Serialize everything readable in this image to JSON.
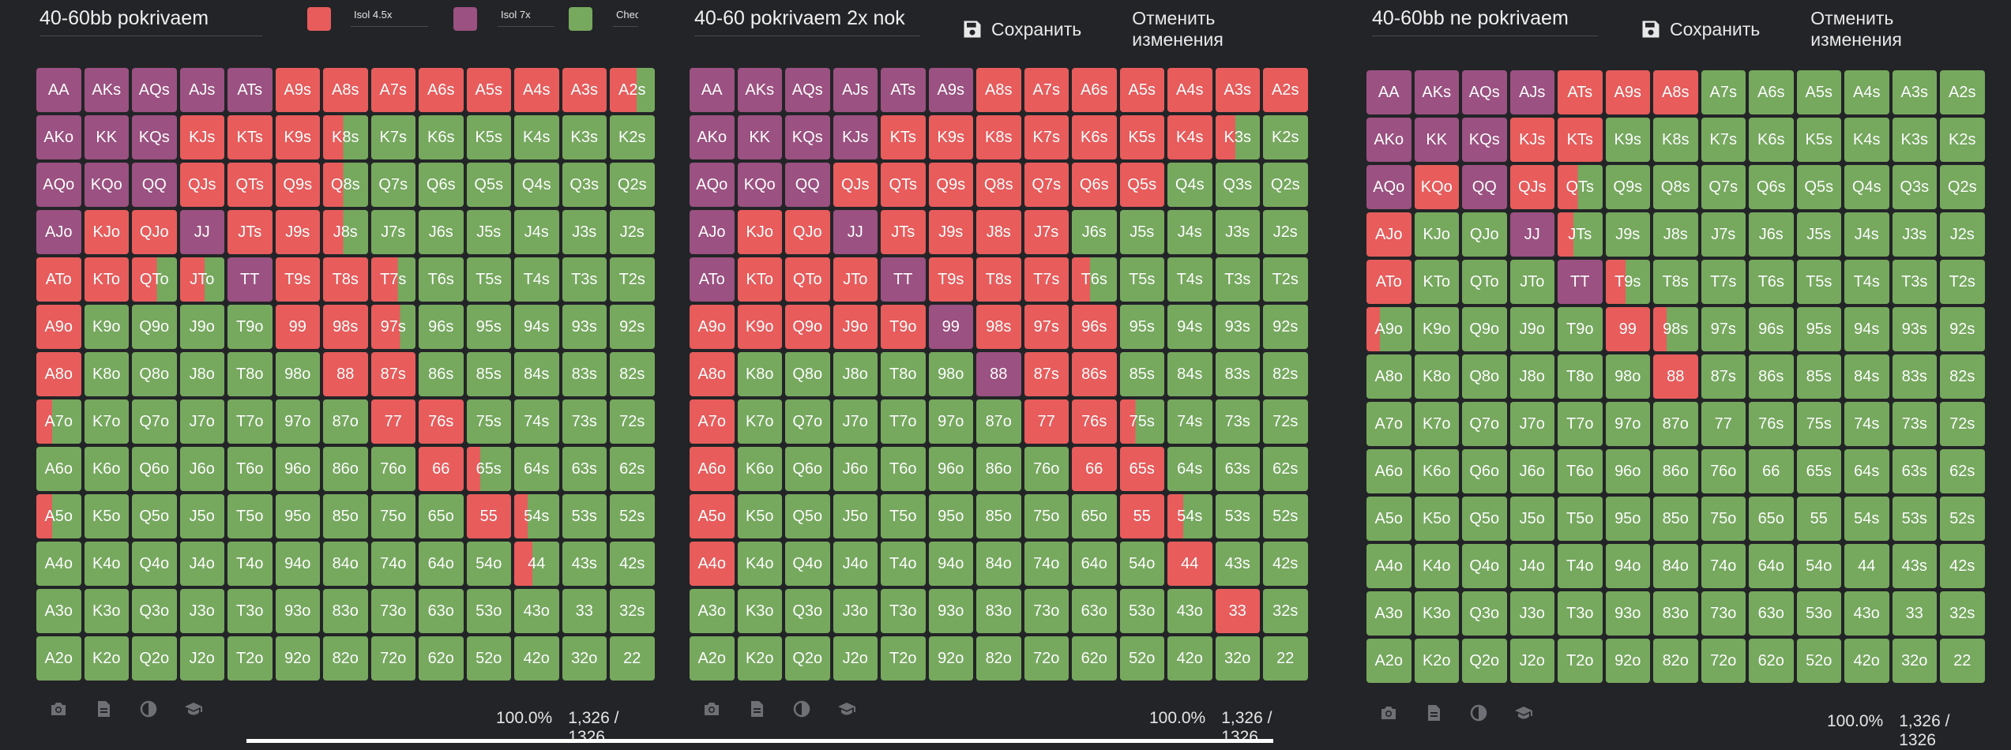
{
  "colors": {
    "isol45": "#e85c5c",
    "isol7": "#9b5181",
    "check": "#76a95e",
    "background": "#232427"
  },
  "legend": {
    "isol45_label": "Isol 4.5x",
    "isol7_label": "Isol 7x",
    "check_label": "Check"
  },
  "toolbar": {
    "save_label": "Сохранить",
    "cancel_label": "Отменить изменения"
  },
  "grid_hands": [
    [
      "AA",
      "AKs",
      "AQs",
      "AJs",
      "ATs",
      "A9s",
      "A8s",
      "A7s",
      "A6s",
      "A5s",
      "A4s",
      "A3s",
      "A2s"
    ],
    [
      "AKo",
      "KK",
      "KQs",
      "KJs",
      "KTs",
      "K9s",
      "K8s",
      "K7s",
      "K6s",
      "K5s",
      "K4s",
      "K3s",
      "K2s"
    ],
    [
      "AQo",
      "KQo",
      "QQ",
      "QJs",
      "QTs",
      "Q9s",
      "Q8s",
      "Q7s",
      "Q6s",
      "Q5s",
      "Q4s",
      "Q3s",
      "Q2s"
    ],
    [
      "AJo",
      "KJo",
      "QJo",
      "JJ",
      "JTs",
      "J9s",
      "J8s",
      "J7s",
      "J6s",
      "J5s",
      "J4s",
      "J3s",
      "J2s"
    ],
    [
      "ATo",
      "KTo",
      "QTo",
      "JTo",
      "TT",
      "T9s",
      "T8s",
      "T7s",
      "T6s",
      "T5s",
      "T4s",
      "T3s",
      "T2s"
    ],
    [
      "A9o",
      "K9o",
      "Q9o",
      "J9o",
      "T9o",
      "99",
      "98s",
      "97s",
      "96s",
      "95s",
      "94s",
      "93s",
      "92s"
    ],
    [
      "A8o",
      "K8o",
      "Q8o",
      "J8o",
      "T8o",
      "98o",
      "88",
      "87s",
      "86s",
      "85s",
      "84s",
      "83s",
      "82s"
    ],
    [
      "A7o",
      "K7o",
      "Q7o",
      "J7o",
      "T7o",
      "97o",
      "87o",
      "77",
      "76s",
      "75s",
      "74s",
      "73s",
      "72s"
    ],
    [
      "A6o",
      "K6o",
      "Q6o",
      "J6o",
      "T6o",
      "96o",
      "86o",
      "76o",
      "66",
      "65s",
      "64s",
      "63s",
      "62s"
    ],
    [
      "A5o",
      "K5o",
      "Q5o",
      "J5o",
      "T5o",
      "95o",
      "85o",
      "75o",
      "65o",
      "55",
      "54s",
      "53s",
      "52s"
    ],
    [
      "A4o",
      "K4o",
      "Q4o",
      "J4o",
      "T4o",
      "94o",
      "84o",
      "74o",
      "64o",
      "54o",
      "44",
      "43s",
      "42s"
    ],
    [
      "A3o",
      "K3o",
      "Q3o",
      "J3o",
      "T3o",
      "93o",
      "83o",
      "73o",
      "63o",
      "53o",
      "43o",
      "33",
      "32s"
    ],
    [
      "A2o",
      "K2o",
      "Q2o",
      "J2o",
      "T2o",
      "92o",
      "82o",
      "72o",
      "62o",
      "52o",
      "42o",
      "32o",
      "22"
    ]
  ],
  "panels": [
    {
      "title": "40-60bb pokrivaem",
      "stats_pct": "100.0%",
      "stats_combos": "1,326 / 1326",
      "layout": "legend",
      "grid": [
        "PPPPPRRRRRRRM",
        "PPPRRRMGGGGGG",
        "PPPRRRMGGGGGG",
        "PRRPRRMGGGGGG",
        "RRMMPRRMGGGGG",
        "RGGGGRRMGGGGG",
        "RGGGGGRRGGGGG",
        "MGGGGGGRRGGGG",
        "GGGGGGGGRMGGG",
        "MGGGGGGGGRMGG",
        "GGGGGGGGGGMGG",
        "GGGGGGGGGGGGG",
        "GGGGGGGGGGGGG"
      ],
      "splits": {
        "0,12": 0.6,
        "1,6": 0.45,
        "2,6": 0.45,
        "3,6": 0.45,
        "4,2": 0.55,
        "4,3": 0.55,
        "4,7": 0.6,
        "5,7": 0.65,
        "7,0": 0.35,
        "8,9": 0.3,
        "9,0": 0.35,
        "9,10": 0.3,
        "10,10": 0.4
      }
    },
    {
      "title": "40-60 pokrivaem 2x nok",
      "stats_pct": "100.0%",
      "stats_combos": "1,326 / 1326",
      "layout": "toolbar",
      "grid": [
        "PPPPPPRRRRRRR",
        "PPPPRRRRRRRMG",
        "PPPRRRRRRRGGG",
        "PRRPRRRRGGGGG",
        "PRRRPRRRMGGGG",
        "RRRRRPRRRGGGG",
        "RGGGGGPRRGGGG",
        "RGGGGGGRRMGGG",
        "RGGGGGGGRRGGG",
        "RGGGGGGGGRMGG",
        "RGGGGGGGGGRGG",
        "GGGGGGGGGGGRG",
        "GGGGGGGGGGGGG"
      ],
      "splits": {
        "1,11": 0.45,
        "4,8": 0.4,
        "7,9": 0.35,
        "9,10": 0.35
      }
    },
    {
      "title": "40-60bb ne pokrivaem",
      "stats_pct": "100.0%",
      "stats_combos": "1,326 / 1326",
      "layout": "toolbar",
      "grid": [
        "PPPPRRRGGGGGG",
        "PPPRRGGGGGGGG",
        "PRPRMGGGGGGGG",
        "RGGPMGGGGGGGG",
        "RGGGPMGGGGGGG",
        "MGGGGRMGGGGGG",
        "GGGGGGRGGGGGG",
        "GGGGGGGGGGGGG",
        "GGGGGGGGGGGGG",
        "GGGGGGGGGGGGG",
        "GGGGGGGGGGGGG",
        "GGGGGGGGGGGGG",
        "GGGGGGGGGGGGG"
      ],
      "splits": {
        "2,4": 0.45,
        "3,4": 0.35,
        "4,5": 0.45,
        "5,0": 0.3,
        "5,6": 0.3
      }
    }
  ]
}
